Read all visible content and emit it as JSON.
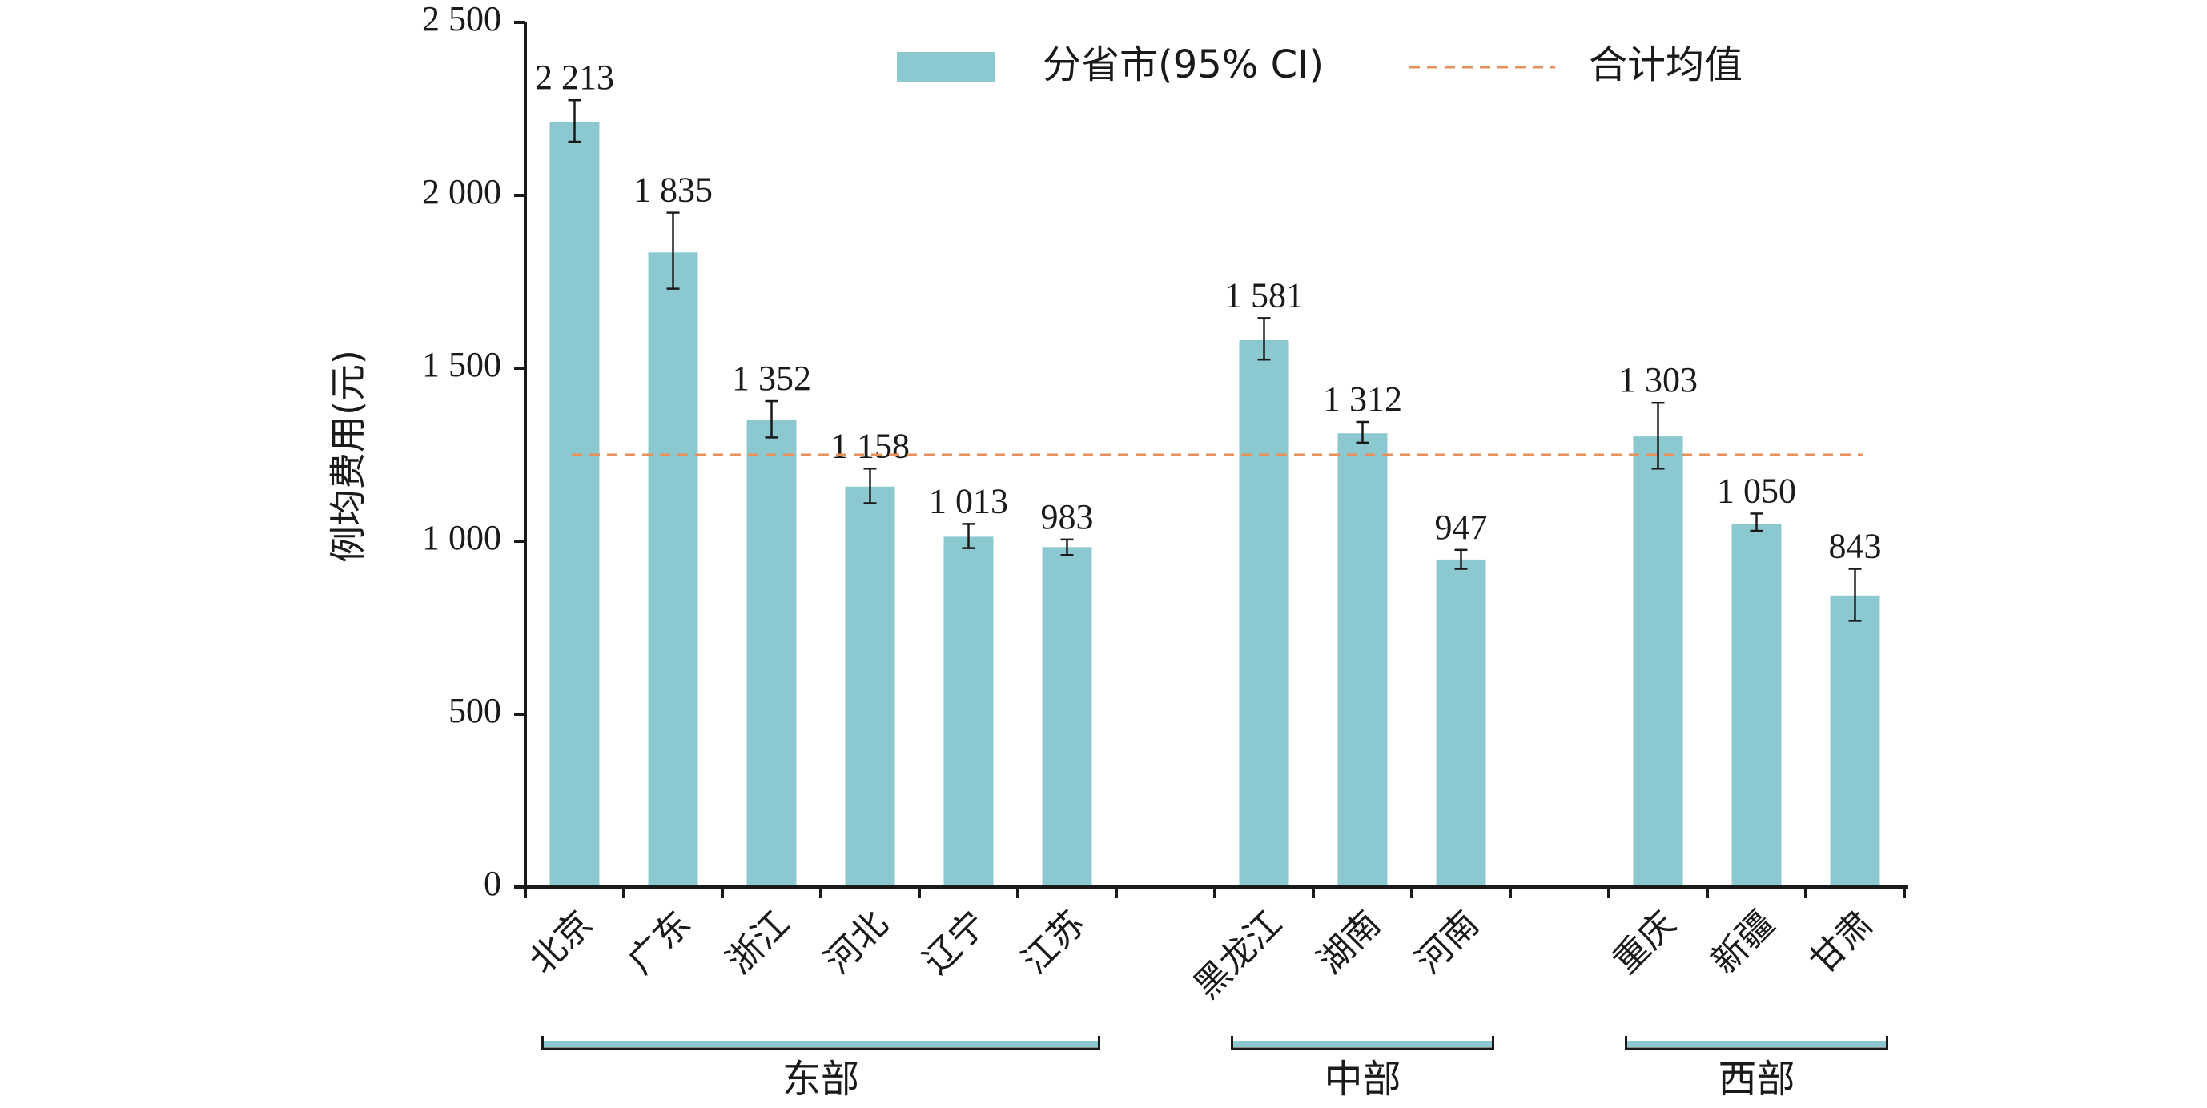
{
  "chart_data": {
    "type": "bar",
    "ylabel": "例均费用(元)",
    "ylim": [
      0,
      2500
    ],
    "yticks": [
      0,
      500,
      1000,
      1500,
      2000,
      2500
    ],
    "ytick_labels": [
      "0",
      "500",
      "1 000",
      "1 500",
      "2 000",
      "2 500"
    ],
    "groups": [
      {
        "label": "东部",
        "members": [
          "北京",
          "广东",
          "浙江",
          "河北",
          "辽宁",
          "江苏"
        ]
      },
      {
        "label": "中部",
        "members": [
          "黑龙江",
          "湖南",
          "河南"
        ]
      },
      {
        "label": "西部",
        "members": [
          "重庆",
          "新疆",
          "甘肃"
        ]
      }
    ],
    "categories": [
      "北京",
      "广东",
      "浙江",
      "河北",
      "辽宁",
      "江苏",
      "黑龙江",
      "湖南",
      "河南",
      "重庆",
      "新疆",
      "甘肃"
    ],
    "series": [
      {
        "name": "分省市(95% CI)",
        "values": [
          2213,
          1835,
          1352,
          1158,
          1013,
          983,
          1581,
          1312,
          947,
          1303,
          1050,
          843
        ],
        "value_labels": [
          "2 213",
          "1 835",
          "1 352",
          "1 158",
          "1 013",
          "983",
          "1 581",
          "1 312",
          "947",
          "1 303",
          "1 050",
          "843"
        ],
        "ci_low": [
          2155,
          1730,
          1300,
          1110,
          980,
          960,
          1525,
          1285,
          920,
          1210,
          1030,
          770
        ],
        "ci_high": [
          2275,
          1950,
          1405,
          1210,
          1050,
          1005,
          1645,
          1345,
          975,
          1400,
          1080,
          920
        ]
      }
    ],
    "reference_line": {
      "name": "合计均值",
      "value": 1250
    },
    "legend_position": "top",
    "grid": false,
    "colors": {
      "bar": "#8CC8D0",
      "reference": "#E8905A",
      "axis": "#1a1a1a",
      "group_bracket": "#8CC8D0"
    }
  }
}
